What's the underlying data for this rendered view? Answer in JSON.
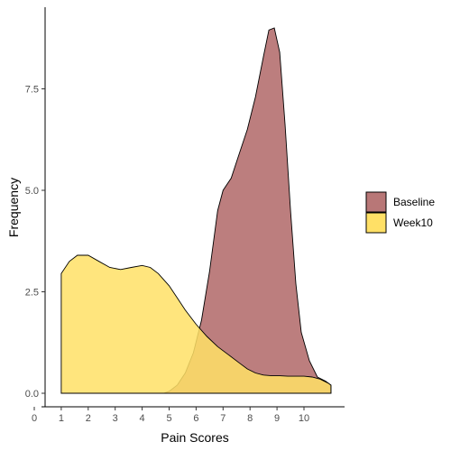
{
  "chart_data": {
    "type": "area",
    "xlabel": "Pain Scores",
    "ylabel": "Frequency",
    "xlim": [
      0,
      11.5
    ],
    "ylim": [
      0,
      9.3
    ],
    "x_ticks": [
      0,
      1,
      2,
      3,
      4,
      5,
      6,
      7,
      8,
      9,
      10
    ],
    "y_ticks": [
      0,
      2.5,
      5,
      7.5
    ],
    "y_tick_labels": [
      "0.0",
      "2.5",
      "5.0",
      "7.5"
    ],
    "grid": false,
    "legend_position": "right",
    "series": [
      {
        "name": "Baseline",
        "color": "#b87777",
        "x": [
          1,
          2,
          3,
          4,
          4.8,
          5,
          5.3,
          5.6,
          5.9,
          6.2,
          6.5,
          6.8,
          7.0,
          7.3,
          7.6,
          7.9,
          8.2,
          8.5,
          8.7,
          8.9,
          9.1,
          9.3,
          9.5,
          9.7,
          9.9,
          10.2,
          10.5,
          10.8,
          11.0
        ],
        "y": [
          0,
          0,
          0,
          0,
          0,
          0.05,
          0.2,
          0.5,
          1.0,
          1.8,
          3.0,
          4.5,
          5.0,
          5.3,
          5.9,
          6.5,
          7.3,
          8.3,
          8.95,
          9.0,
          8.4,
          6.6,
          4.5,
          2.7,
          1.5,
          0.8,
          0.4,
          0.3,
          0.2
        ]
      },
      {
        "name": "Week10",
        "color": "#ffe066",
        "x": [
          1,
          1.3,
          1.6,
          2.0,
          2.4,
          2.8,
          3.2,
          3.6,
          4.0,
          4.3,
          4.6,
          5.0,
          5.3,
          5.6,
          6.0,
          6.4,
          6.8,
          7.2,
          7.6,
          7.9,
          8.2,
          8.5,
          8.8,
          9.1,
          9.4,
          9.7,
          10.0,
          10.3,
          10.6,
          10.9,
          11.0
        ],
        "y": [
          2.95,
          3.25,
          3.4,
          3.4,
          3.25,
          3.1,
          3.05,
          3.1,
          3.15,
          3.1,
          2.95,
          2.65,
          2.35,
          2.05,
          1.7,
          1.4,
          1.15,
          0.95,
          0.75,
          0.6,
          0.5,
          0.45,
          0.43,
          0.43,
          0.42,
          0.42,
          0.42,
          0.4,
          0.35,
          0.25,
          0.2
        ]
      }
    ]
  },
  "colors": {
    "overlap": "#dba838",
    "axis": "#000000",
    "tick_label": "#4d4d4d"
  }
}
